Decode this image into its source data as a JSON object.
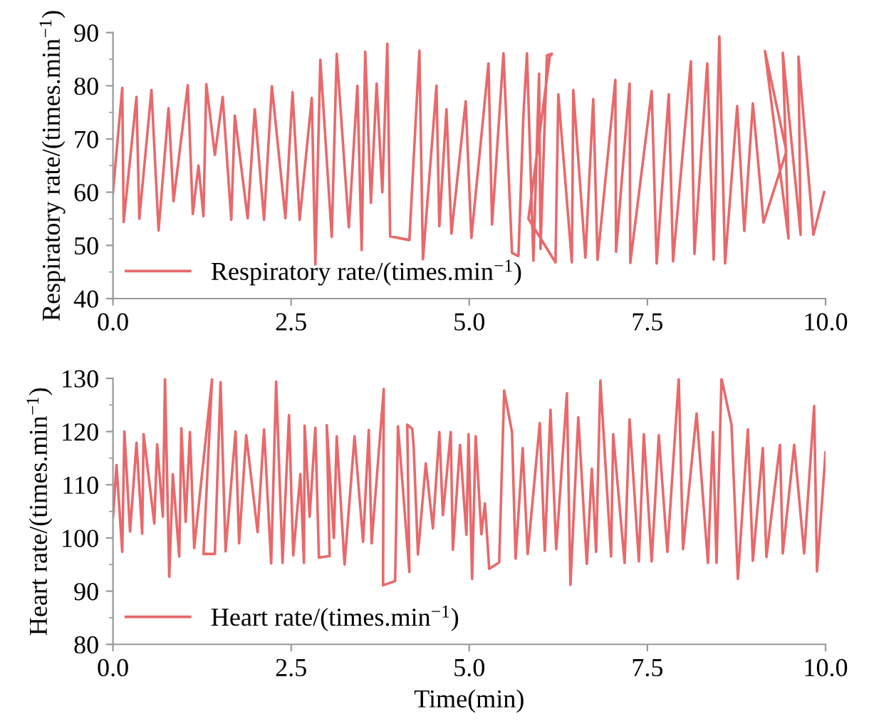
{
  "chart_data": [
    {
      "type": "line",
      "ylabel": "Respiratory rate/(times.min$^{−1}$)",
      "xlim": [
        0,
        10
      ],
      "ylim": [
        40,
        90
      ],
      "xticks": [
        {
          "value": 0,
          "label": "0.0"
        },
        {
          "value": 2.5,
          "label": "2.5"
        },
        {
          "value": 5,
          "label": "5.0"
        },
        {
          "value": 7.5,
          "label": "7.5"
        },
        {
          "value": 10,
          "label": "10.0"
        }
      ],
      "yticks": [
        40,
        50,
        60,
        70,
        80,
        90
      ],
      "legend": "bottom left",
      "grid": false,
      "series": [
        {
          "name": "Respiratory rate/(times.min$^{−1}$)",
          "color": "#e8696b",
          "x": [
            0,
            0.13,
            0.15,
            0.33,
            0.37,
            0.54,
            0.64,
            0.78,
            0.85,
            1.05,
            1.12,
            1.2,
            1.27,
            1.31,
            1.43,
            1.54,
            1.66,
            1.71,
            1.89,
            1.99,
            2.12,
            2.23,
            2.42,
            2.52,
            2.62,
            2.79,
            2.84,
            2.91,
            3.07,
            3.14,
            3.31,
            3.43,
            3.49,
            3.54,
            3.62,
            3.7,
            3.78,
            3.85,
            3.89,
            4.16,
            4.3,
            4.35,
            4.54,
            4.58,
            4.68,
            4.75,
            4.95,
            5.03,
            5.27,
            5.32,
            5.48,
            5.6,
            5.69,
            5.76,
            5.81,
            5.9,
            5.98,
            6.0,
            6.09,
            6.16,
            6.13,
            5.83,
            6.21,
            6.25,
            6.44,
            6.46,
            6.63,
            6.74,
            6.8,
            7.05,
            7.06,
            7.25,
            7.26,
            7.56,
            7.63,
            7.8,
            7.86,
            8.11,
            8.16,
            8.34,
            8.43,
            8.51,
            8.59,
            8.76,
            8.86,
            8.98,
            9.13,
            9.45,
            9.15,
            9.48,
            9.4,
            9.65,
            9.62,
            9.83,
            9.98
          ],
          "values": [
            60,
            79.6,
            54.4,
            77.9,
            55,
            79.2,
            52.8,
            75.8,
            58.3,
            80.1,
            55.9,
            65,
            55.5,
            80.3,
            67,
            77.9,
            54.8,
            74.4,
            55.1,
            75.6,
            54.8,
            79.9,
            55.1,
            78.8,
            54.8,
            77.7,
            46.4,
            84.9,
            51.6,
            86,
            53.4,
            80,
            49.1,
            86.4,
            58,
            80.4,
            60,
            87.9,
            51.7,
            51,
            86.6,
            47.4,
            80,
            53.6,
            75.6,
            52.2,
            77.1,
            51.4,
            84.2,
            53.9,
            86.1,
            48.6,
            48,
            74.5,
            86.1,
            47.1,
            82.3,
            49.3,
            85.7,
            86,
            85.5,
            55,
            46.8,
            78.4,
            46.8,
            79.2,
            47.7,
            77.5,
            47.3,
            81.1,
            48.8,
            80.4,
            46.7,
            79,
            46.6,
            78.4,
            47,
            84.6,
            48.4,
            84.2,
            47.3,
            89.3,
            46.6,
            76.2,
            52.7,
            76.7,
            54.3,
            67.7,
            86.5,
            51.3,
            86.2,
            52,
            85.5,
            52,
            60
          ]
        }
      ]
    },
    {
      "type": "line",
      "xlabel": "Time(min)",
      "ylabel": "Heart rate/(times.min$^{−1}$)",
      "xlim": [
        0,
        10
      ],
      "ylim": [
        80,
        130
      ],
      "xticks": [
        {
          "value": 0,
          "label": "0.0"
        },
        {
          "value": 2.5,
          "label": "2.5"
        },
        {
          "value": 5,
          "label": "5.0"
        },
        {
          "value": 7.5,
          "label": "7.5"
        },
        {
          "value": 10,
          "label": "10.0"
        }
      ],
      "yticks": [
        80,
        90,
        100,
        110,
        120,
        130
      ],
      "legend": "bottom left",
      "grid": false,
      "series": [
        {
          "name": "Heart rate/(times.min$^{−1}$)",
          "color": "#e8696b",
          "x": [
            0,
            0.05,
            0.13,
            0.16,
            0.24,
            0.33,
            0.41,
            0.43,
            0.58,
            0.62,
            0.7,
            0.73,
            0.79,
            0.84,
            0.93,
            0.96,
            1.02,
            1.08,
            1.14,
            1.39,
            1.27,
            1.43,
            1.51,
            1.58,
            1.72,
            1.77,
            1.87,
            2.03,
            2.12,
            2.22,
            2.29,
            2.38,
            2.47,
            2.53,
            2.63,
            2.68,
            2.69,
            2.76,
            2.84,
            2.89,
            3.04,
            3.0,
            3.1,
            3.14,
            3.25,
            3.39,
            3.51,
            3.59,
            3.63,
            3.8,
            3.79,
            3.96,
            4.0,
            4.16,
            4.13,
            4.2,
            4.22,
            4.28,
            4.39,
            4.49,
            4.58,
            4.63,
            4.74,
            4.77,
            4.87,
            4.96,
            4.99,
            5.04,
            5.09,
            5.17,
            5.22,
            5.28,
            5.42,
            5.49,
            5.6,
            5.65,
            5.75,
            5.82,
            5.99,
            6.06,
            6.14,
            6.22,
            6.37,
            6.42,
            6.53,
            6.65,
            6.72,
            6.78,
            6.84,
            6.99,
            7.02,
            7.18,
            7.25,
            7.38,
            7.45,
            7.56,
            7.66,
            7.78,
            7.94,
            8.0,
            8.19,
            8.35,
            8.42,
            8.47,
            8.54,
            8.68,
            8.77,
            8.91,
            8.98,
            9.12,
            9.17,
            9.36,
            9.4,
            9.56,
            9.7,
            9.84,
            9.88,
            10.0
          ],
          "values": [
            103.9,
            113.7,
            97.4,
            120,
            101.2,
            117.9,
            100.8,
            119.5,
            102.7,
            117.6,
            104,
            130,
            92.7,
            112,
            96.5,
            120.6,
            103,
            119.9,
            98.1,
            129.8,
            97,
            97,
            129.3,
            97.5,
            120,
            99,
            119.3,
            101.1,
            120.4,
            95.2,
            129.4,
            95.3,
            123.1,
            96.7,
            112,
            95.3,
            121.1,
            104,
            120.7,
            96.3,
            96.6,
            121.2,
            100,
            119.1,
            95,
            119.1,
            99.3,
            120.3,
            99,
            128,
            91.1,
            91.9,
            121,
            93.6,
            121.3,
            120.5,
            117.1,
            96.9,
            114,
            101.8,
            119.9,
            104.3,
            119.9,
            97.8,
            117.5,
            100.6,
            119.5,
            92.3,
            119.1,
            100.7,
            106.5,
            94.2,
            95.4,
            127.7,
            119.9,
            96.1,
            116.9,
            97,
            121.6,
            97.6,
            124.1,
            97.9,
            127.2,
            91.2,
            122.7,
            95.1,
            113,
            97.4,
            129.6,
            96.5,
            119.5,
            95.3,
            122.3,
            95.6,
            119.5,
            95.6,
            119.3,
            97.4,
            130,
            97.9,
            123.4,
            95.3,
            119.9,
            95.3,
            130,
            121.3,
            92.3,
            120.4,
            95.7,
            116.9,
            96.4,
            117.5,
            97.1,
            117.5,
            97.1,
            124.8,
            93.7,
            116.1
          ]
        }
      ]
    }
  ]
}
